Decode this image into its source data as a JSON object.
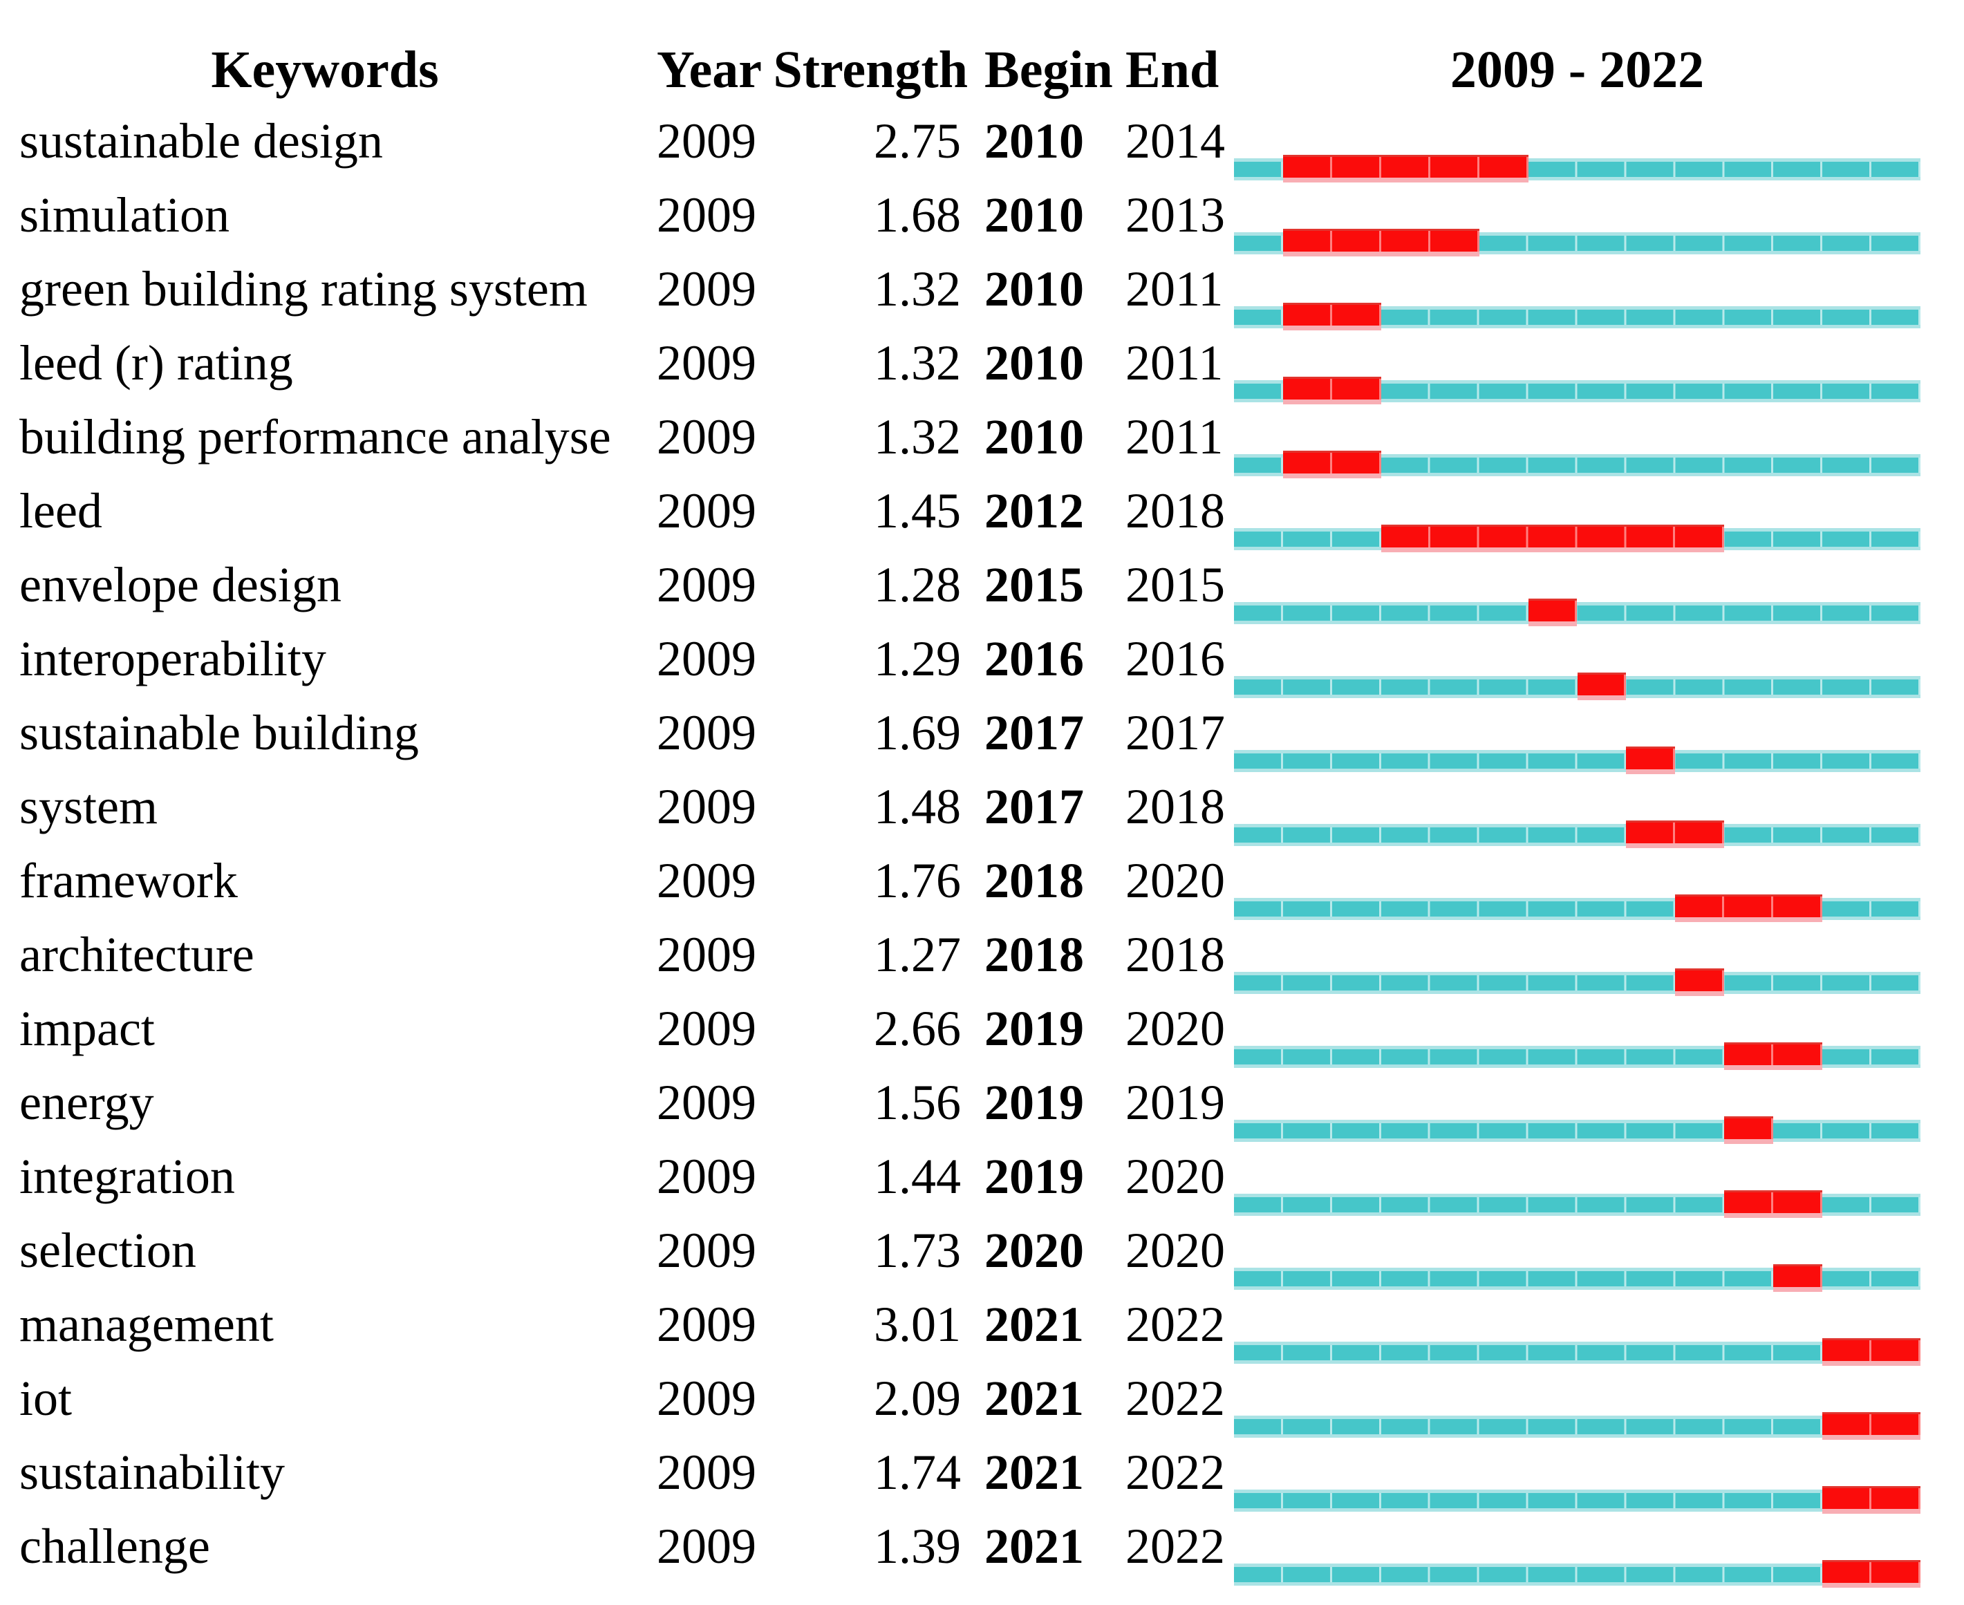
{
  "figure": {
    "header": {
      "keywords": "Keywords",
      "year": "Year",
      "strength": "Strength",
      "begin": "Begin",
      "end": "End",
      "timeline": "2009 - 2022"
    }
  },
  "colors": {
    "background": "#ffffff",
    "text": "#000000",
    "track": "#46c6c9",
    "track_edge": "#abe3e5",
    "burst": "#fb0c0b",
    "burst_top": "#e2342e",
    "burst_bottom": "#f8aeb4",
    "burst_divider": "rgba(255,140,140,0.9)"
  },
  "chart_data": {
    "type": "table",
    "title": "2009 - 2022",
    "columns": [
      "Keywords",
      "Year",
      "Strength",
      "Begin",
      "End",
      "2009 - 2022"
    ],
    "year_range": [
      2009,
      2022
    ],
    "legend": {
      "track": "publication years 2009-2022",
      "burst": "citation burst period"
    },
    "rows": [
      {
        "keyword": "sustainable design",
        "year": 2009,
        "strength": "2.75",
        "begin": 2010,
        "end": 2014
      },
      {
        "keyword": "simulation",
        "year": 2009,
        "strength": "1.68",
        "begin": 2010,
        "end": 2013
      },
      {
        "keyword": "green building rating system",
        "year": 2009,
        "strength": "1.32",
        "begin": 2010,
        "end": 2011
      },
      {
        "keyword": "leed (r) rating",
        "year": 2009,
        "strength": "1.32",
        "begin": 2010,
        "end": 2011
      },
      {
        "keyword": "building performance analyse",
        "year": 2009,
        "strength": "1.32",
        "begin": 2010,
        "end": 2011
      },
      {
        "keyword": "leed",
        "year": 2009,
        "strength": "1.45",
        "begin": 2012,
        "end": 2018
      },
      {
        "keyword": "envelope design",
        "year": 2009,
        "strength": "1.28",
        "begin": 2015,
        "end": 2015
      },
      {
        "keyword": "interoperability",
        "year": 2009,
        "strength": "1.29",
        "begin": 2016,
        "end": 2016
      },
      {
        "keyword": "sustainable building",
        "year": 2009,
        "strength": "1.69",
        "begin": 2017,
        "end": 2017
      },
      {
        "keyword": "system",
        "year": 2009,
        "strength": "1.48",
        "begin": 2017,
        "end": 2018
      },
      {
        "keyword": "framework",
        "year": 2009,
        "strength": "1.76",
        "begin": 2018,
        "end": 2020
      },
      {
        "keyword": "architecture",
        "year": 2009,
        "strength": "1.27",
        "begin": 2018,
        "end": 2018
      },
      {
        "keyword": "impact",
        "year": 2009,
        "strength": "2.66",
        "begin": 2019,
        "end": 2020
      },
      {
        "keyword": "energy",
        "year": 2009,
        "strength": "1.56",
        "begin": 2019,
        "end": 2019
      },
      {
        "keyword": "integration",
        "year": 2009,
        "strength": "1.44",
        "begin": 2019,
        "end": 2020
      },
      {
        "keyword": "selection",
        "year": 2009,
        "strength": "1.73",
        "begin": 2020,
        "end": 2020
      },
      {
        "keyword": "management",
        "year": 2009,
        "strength": "3.01",
        "begin": 2021,
        "end": 2022
      },
      {
        "keyword": "iot",
        "year": 2009,
        "strength": "2.09",
        "begin": 2021,
        "end": 2022
      },
      {
        "keyword": "sustainability",
        "year": 2009,
        "strength": "1.74",
        "begin": 2021,
        "end": 2022
      },
      {
        "keyword": "challenge",
        "year": 2009,
        "strength": "1.39",
        "begin": 2021,
        "end": 2022
      }
    ]
  }
}
